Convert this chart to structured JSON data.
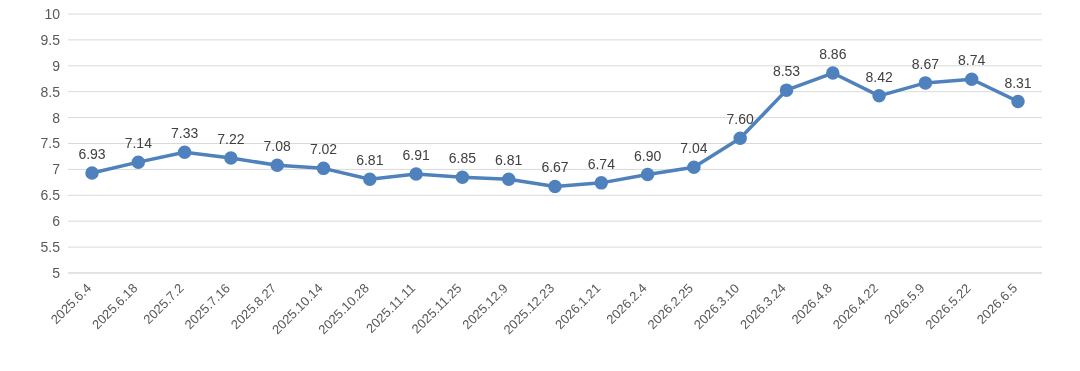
{
  "chart_data": {
    "type": "line",
    "categories": [
      "2025.6.4",
      "2025.6.18",
      "2025.7.2",
      "2025.7.16",
      "2025.8.27",
      "2025.10.14",
      "2025.10.28",
      "2025.11.11",
      "2025.11.25",
      "2025.12.9",
      "2025.12.23",
      "2026.1.21",
      "2026.2.4",
      "2026.2.25",
      "2026.3.10",
      "2026.3.24",
      "2026.4.8",
      "2026.4.22",
      "2026.5.9",
      "2026.5.22",
      "2026.6.5"
    ],
    "series": [
      {
        "color": "#4f81bd",
        "values": [
          6.93,
          7.14,
          7.33,
          7.22,
          7.08,
          7.02,
          6.81,
          6.91,
          6.85,
          6.81,
          6.67,
          6.74,
          6.9,
          7.04,
          7.6,
          8.53,
          8.86,
          8.42,
          8.67,
          8.74,
          8.31
        ],
        "value_labels": [
          "6.93",
          "7.14",
          "7.33",
          "7.22",
          "7.08",
          "7.02",
          "6.81",
          "6.91",
          "6.85",
          "6.81",
          "6.67",
          "6.74",
          "6.90",
          "7.04",
          "7.60",
          "8.53",
          "8.86",
          "8.42",
          "8.67",
          "8.74",
          "8.31"
        ]
      }
    ],
    "ylim": [
      5,
      10
    ],
    "yticks": [
      5,
      5.5,
      6,
      6.5,
      7,
      7.5,
      8,
      8.5,
      9,
      9.5,
      10
    ],
    "grid": "y",
    "marker": "circle",
    "line_style": "solid",
    "legend": false
  }
}
